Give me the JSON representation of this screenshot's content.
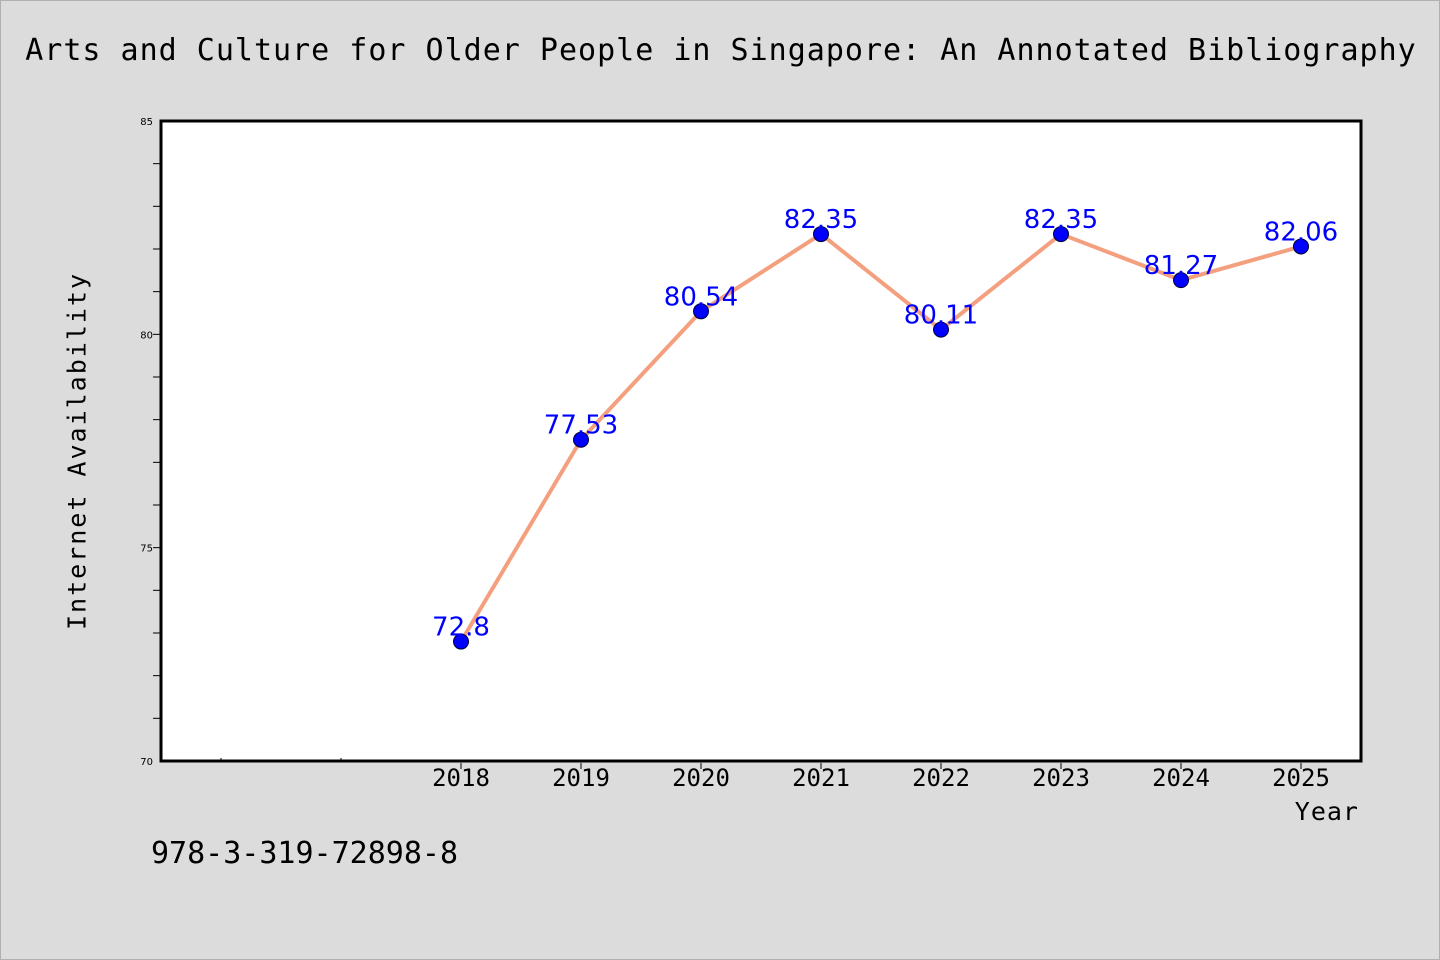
{
  "chart_data": {
    "type": "line",
    "title": "Arts and Culture for Older People in Singapore: An Annotated Bibliography",
    "xlabel": "Year",
    "ylabel": "Internet Availability",
    "x": [
      "2018",
      "2019",
      "2020",
      "2021",
      "2022",
      "2023",
      "2024",
      "2025"
    ],
    "series": [
      {
        "values": [
          72.8,
          77.53,
          80.54,
          82.35,
          80.11,
          82.35,
          81.27,
          82.06
        ],
        "data_labels": [
          "72.8",
          "77.53",
          "80.54",
          "82.35",
          "80.11",
          "82.35",
          "81.27",
          "82.06"
        ],
        "line_color": "#f4a07f",
        "marker_color": "#0000ff"
      }
    ],
    "ylim": [
      70,
      85
    ],
    "y_ticks": [
      "70",
      "75",
      "80",
      "85"
    ],
    "grid": false,
    "legend": "none"
  },
  "footer": {
    "isbn": "978-3-319-72898-8"
  }
}
